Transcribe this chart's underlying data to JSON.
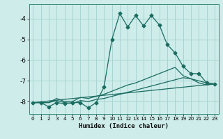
{
  "xlabel": "Humidex (Indice chaleur)",
  "bg_color": "#cdecea",
  "grid_color": "#a8d5d2",
  "line_color": "#1a6b60",
  "spine_color": "#3a8a7a",
  "xlim": [
    -0.5,
    23.5
  ],
  "ylim": [
    -8.6,
    -3.3
  ],
  "yticks": [
    -8,
    -7,
    -6,
    -5,
    -4
  ],
  "xticks": [
    0,
    1,
    2,
    3,
    4,
    5,
    6,
    7,
    8,
    9,
    10,
    11,
    12,
    13,
    14,
    15,
    16,
    17,
    18,
    19,
    20,
    21,
    22,
    23
  ],
  "series1_x": [
    0,
    1,
    2,
    3,
    4,
    5,
    6,
    7,
    8,
    9,
    10,
    11,
    12,
    13,
    14,
    15,
    16,
    17,
    18,
    19,
    20,
    21,
    22,
    23
  ],
  "series1_y": [
    -8.05,
    -8.05,
    -8.25,
    -8.05,
    -8.1,
    -8.05,
    -8.05,
    -8.3,
    -8.05,
    -7.3,
    -5.0,
    -3.75,
    -4.4,
    -3.85,
    -4.35,
    -3.85,
    -4.3,
    -5.25,
    -5.65,
    -6.3,
    -6.65,
    -6.65,
    -7.1,
    -7.15
  ],
  "series2_x": [
    0,
    1,
    2,
    3,
    4,
    5,
    6,
    7,
    8,
    9,
    10,
    11,
    12,
    13,
    14,
    15,
    16,
    17,
    18,
    19,
    20,
    21,
    22,
    23
  ],
  "series2_y": [
    -8.05,
    -8.05,
    -8.05,
    -7.85,
    -8.0,
    -8.0,
    -7.8,
    -7.85,
    -7.75,
    -7.65,
    -7.5,
    -7.35,
    -7.2,
    -7.1,
    -6.95,
    -6.8,
    -6.65,
    -6.5,
    -6.35,
    -6.75,
    -6.9,
    -7.1,
    -7.2,
    -7.15
  ],
  "series3_x": [
    0,
    1,
    2,
    3,
    4,
    5,
    6,
    7,
    8,
    9,
    10,
    11,
    12,
    13,
    14,
    15,
    16,
    17,
    18,
    19,
    20,
    21,
    22,
    23
  ],
  "series3_y": [
    -8.05,
    -8.05,
    -8.05,
    -7.95,
    -8.05,
    -8.1,
    -7.95,
    -8.0,
    -7.9,
    -7.85,
    -7.75,
    -7.65,
    -7.55,
    -7.45,
    -7.35,
    -7.25,
    -7.15,
    -7.05,
    -6.95,
    -6.85,
    -6.9,
    -7.0,
    -7.1,
    -7.15
  ],
  "series4_x": [
    0,
    23
  ],
  "series4_y": [
    -8.05,
    -7.15
  ]
}
